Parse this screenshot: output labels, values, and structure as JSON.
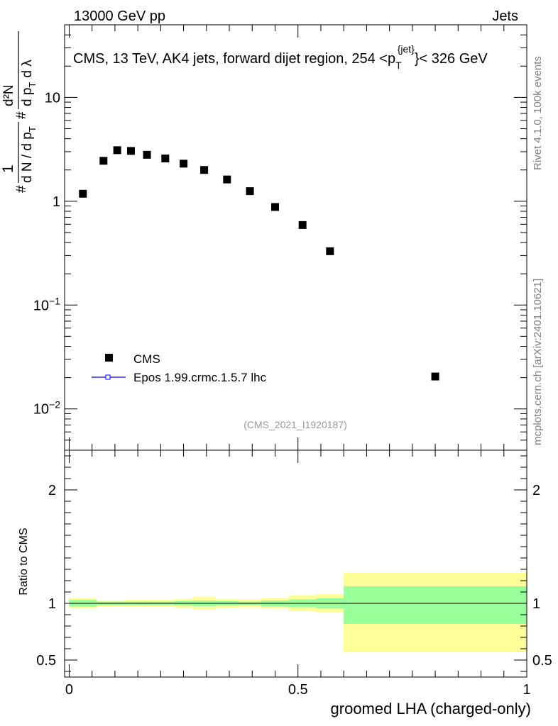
{
  "header": {
    "energy_label": "13000 GeV pp",
    "category_label": "Jets"
  },
  "side_labels": {
    "rivet": "Rivet 4.1.0,  100k events",
    "source": "mcplots.cern.ch [arXiv:2401.10621]"
  },
  "watermark": "(CMS_2021_I1920187)",
  "colors": {
    "band_inner": "#99ff99",
    "band_outer": "#ffff99",
    "mc_line": "#0000ff",
    "data_marker": "#000000"
  },
  "chart_data": [
    {
      "type": "scatter",
      "title_main": "CMS, 13 TeV, AK4 jets, forward dijet region, 254 <p",
      "title_sub": "T",
      "title_sup": "{jet}",
      "title_end": "}< 326 GeV",
      "ylabel": "1/N dN/dpT / d²N/dpT dλ",
      "yscale": "log",
      "ylim": [
        0.004,
        50
      ],
      "xlim": [
        -0.01,
        1.0
      ],
      "y_ticks": [
        {
          "value": 10,
          "base": "10",
          "exp": ""
        },
        {
          "value": 1,
          "base": "1",
          "exp": ""
        },
        {
          "value": 0.1,
          "base": "10",
          "exp": "−1"
        },
        {
          "value": 0.01,
          "base": "10",
          "exp": "−2"
        }
      ],
      "series": [
        {
          "name": "CMS",
          "x": [
            0.03,
            0.075,
            0.105,
            0.135,
            0.17,
            0.21,
            0.25,
            0.295,
            0.345,
            0.395,
            0.45,
            0.51,
            0.57,
            0.8
          ],
          "y": [
            1.18,
            2.45,
            3.1,
            3.05,
            2.8,
            2.58,
            2.3,
            2.0,
            1.62,
            1.25,
            0.88,
            0.59,
            0.33,
            0.0205
          ]
        }
      ],
      "legend": [
        {
          "label": "CMS",
          "marker": "square"
        },
        {
          "label": "Epos 1.99.crmc.1.5.7 lhc",
          "marker": "line-open-square"
        }
      ]
    },
    {
      "type": "area",
      "ylabel": "Ratio to CMS",
      "xlabel": "groomed LHA (charged-only)",
      "ylim": [
        0.35,
        2.35
      ],
      "xlim": [
        -0.01,
        1.0
      ],
      "x_ticks": [
        "0",
        "0.5",
        "1"
      ],
      "y_ticks": [
        "0.5",
        "1",
        "2"
      ],
      "bands": {
        "edges": [
          0.0,
          0.06,
          0.09,
          0.12,
          0.15,
          0.19,
          0.23,
          0.27,
          0.32,
          0.37,
          0.42,
          0.48,
          0.54,
          0.6,
          1.0
        ],
        "inner_lo": [
          0.97,
          0.985,
          0.985,
          0.985,
          0.985,
          0.985,
          0.98,
          0.975,
          0.98,
          0.985,
          0.975,
          0.965,
          0.955,
          0.82
        ],
        "inner_hi": [
          1.03,
          1.015,
          1.015,
          1.015,
          1.015,
          1.015,
          1.02,
          1.025,
          1.02,
          1.015,
          1.025,
          1.035,
          1.045,
          1.15
        ],
        "outer_lo": [
          0.955,
          0.975,
          0.975,
          0.97,
          0.97,
          0.97,
          0.96,
          0.945,
          0.96,
          0.965,
          0.955,
          0.93,
          0.92,
          0.57
        ],
        "outer_hi": [
          1.045,
          1.025,
          1.025,
          1.03,
          1.03,
          1.03,
          1.04,
          1.055,
          1.04,
          1.035,
          1.045,
          1.07,
          1.08,
          1.27
        ]
      },
      "reference": 1
    }
  ],
  "axis_labels": {
    "y_top_1_num": "1",
    "y_top_1_den": "d N / d p",
    "y_top_sub": "T",
    "y_top_hash": "#",
    "y_top_2_num": "d²N",
    "y_top_2_den": "d p",
    "y_top_2_tail": "d λ"
  }
}
